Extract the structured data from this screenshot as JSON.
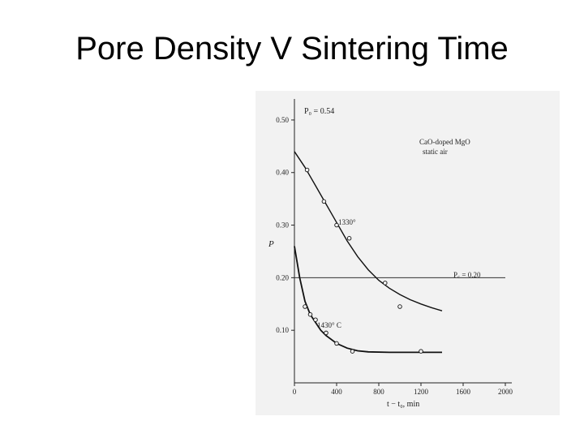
{
  "slide": {
    "title": "Pore Density V Sintering Time"
  },
  "chart_data": {
    "type": "line",
    "xlabel": "t − t₀, min",
    "ylabel": "P",
    "xlim": [
      0,
      2000
    ],
    "ylim": [
      0,
      0.54
    ],
    "x_ticks": [
      "0",
      "400",
      "800",
      "1200",
      "1600",
      "2000"
    ],
    "y_ticks": [
      "0.10",
      "0.20",
      "0.30",
      "0.40",
      "0.50"
    ],
    "annotations": {
      "p0": "P₀ = 0.54",
      "material_line1": "CaO-doped MgO",
      "material_line2": "static air",
      "pc": "P꜀ = 0.20",
      "label_1330": "1330°",
      "label_1430": "1430° C"
    },
    "reference_line": {
      "y": 0.2
    },
    "series": [
      {
        "name": "1330°",
        "points": [
          [
            120,
            0.405
          ],
          [
            280,
            0.345
          ],
          [
            400,
            0.3
          ],
          [
            520,
            0.275
          ],
          [
            860,
            0.19
          ],
          [
            1000,
            0.145
          ]
        ],
        "curve": [
          [
            0,
            0.44
          ],
          [
            100,
            0.41
          ],
          [
            200,
            0.375
          ],
          [
            300,
            0.34
          ],
          [
            400,
            0.305
          ],
          [
            500,
            0.27
          ],
          [
            600,
            0.24
          ],
          [
            700,
            0.215
          ],
          [
            800,
            0.195
          ],
          [
            900,
            0.18
          ],
          [
            1000,
            0.168
          ],
          [
            1100,
            0.158
          ],
          [
            1200,
            0.15
          ],
          [
            1300,
            0.143
          ],
          [
            1400,
            0.137
          ]
        ]
      },
      {
        "name": "1430° C",
        "points": [
          [
            100,
            0.145
          ],
          [
            150,
            0.13
          ],
          [
            200,
            0.12
          ],
          [
            300,
            0.095
          ],
          [
            400,
            0.075
          ],
          [
            550,
            0.06
          ],
          [
            1200,
            0.06
          ]
        ],
        "curve": [
          [
            0,
            0.26
          ],
          [
            50,
            0.2
          ],
          [
            100,
            0.155
          ],
          [
            150,
            0.13
          ],
          [
            200,
            0.115
          ],
          [
            250,
            0.1
          ],
          [
            300,
            0.09
          ],
          [
            400,
            0.075
          ],
          [
            500,
            0.066
          ],
          [
            600,
            0.061
          ],
          [
            700,
            0.059
          ],
          [
            900,
            0.058
          ],
          [
            1200,
            0.058
          ],
          [
            1400,
            0.058
          ]
        ]
      }
    ]
  }
}
